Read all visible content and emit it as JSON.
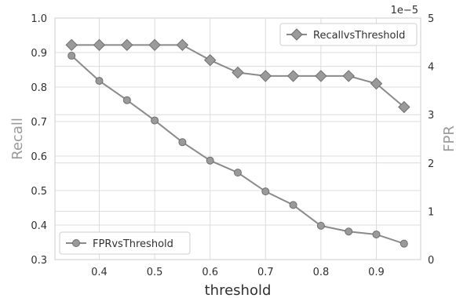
{
  "colors": {
    "series": "#8a8a8a",
    "marker": "#9a9a9a",
    "marker_edge": "#6e6e6e",
    "grid": "#dcdcdc",
    "text": "#303030",
    "axis_label": "#9a9a9a"
  },
  "chart_data": {
    "type": "line",
    "xlabel": "threshold",
    "ylabel": "Recall",
    "y2label": "FPR",
    "y2_offset_label": "1e−5",
    "xlim": [
      0.32,
      0.98
    ],
    "ylim": [
      0.3,
      1.0
    ],
    "y2lim": [
      0,
      5
    ],
    "x_ticks": [
      "0.4",
      "0.5",
      "0.6",
      "0.7",
      "0.8",
      "0.9"
    ],
    "y_ticks": [
      "0.3",
      "0.4",
      "0.5",
      "0.6",
      "0.7",
      "0.8",
      "0.9",
      "1.0"
    ],
    "y2_ticks": [
      "0",
      "1",
      "2",
      "3",
      "4",
      "5"
    ],
    "grid": true,
    "x": [
      0.35,
      0.4,
      0.45,
      0.5,
      0.55,
      0.6,
      0.65,
      0.7,
      0.75,
      0.8,
      0.85,
      0.9,
      0.95
    ],
    "series": [
      {
        "name": "RecallvsThreshold",
        "axis": "left",
        "marker": "diamond",
        "legend_position": "top-right",
        "values": [
          0.922,
          0.922,
          0.922,
          0.922,
          0.922,
          0.878,
          0.842,
          0.832,
          0.832,
          0.832,
          0.832,
          0.81,
          0.742
        ]
      },
      {
        "name": "FPRvsThreshold",
        "axis": "right",
        "marker": "circle",
        "legend_position": "bottom-left",
        "values": [
          4.22,
          3.7,
          3.3,
          2.88,
          2.43,
          2.05,
          1.8,
          1.41,
          1.13,
          0.7,
          0.58,
          0.52,
          0.33
        ]
      }
    ]
  }
}
